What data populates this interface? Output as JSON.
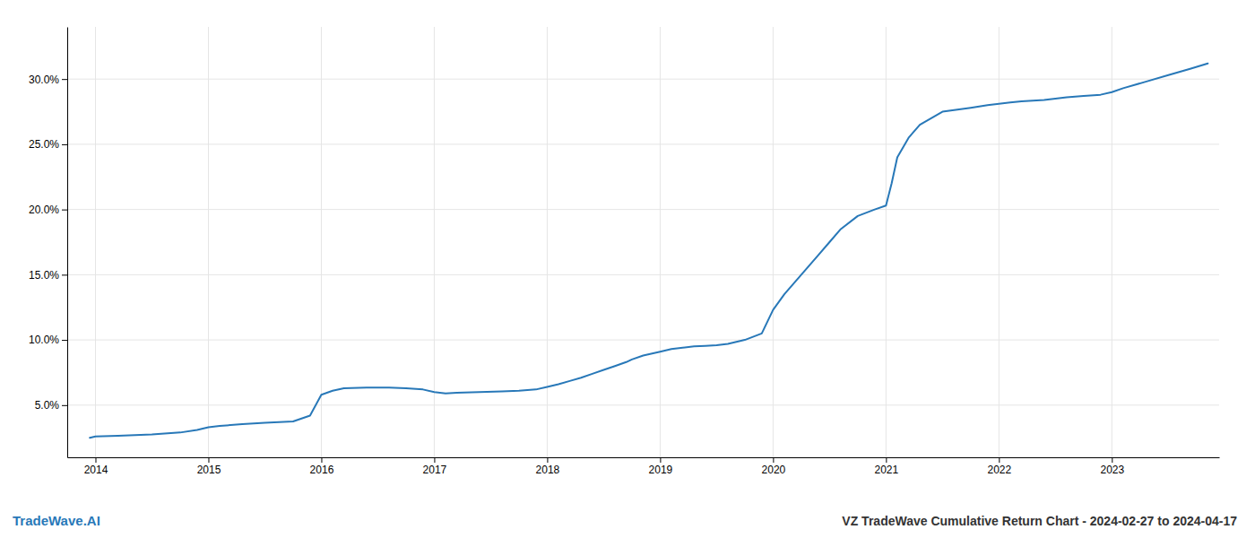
{
  "chart_data": {
    "type": "line",
    "title": "VZ TradeWave Cumulative Return Chart - 2024-02-27 to 2024-04-17",
    "annotations": [
      "TradeWave.AI"
    ],
    "color": "#2878b8",
    "grid": true,
    "x": [
      2013.95,
      2014.0,
      2014.2,
      2014.5,
      2014.75,
      2014.9,
      2015.0,
      2015.1,
      2015.3,
      2015.5,
      2015.75,
      2015.9,
      2016.0,
      2016.1,
      2016.2,
      2016.4,
      2016.6,
      2016.75,
      2016.9,
      2017.0,
      2017.1,
      2017.2,
      2017.4,
      2017.6,
      2017.75,
      2017.9,
      2018.0,
      2018.1,
      2018.2,
      2018.3,
      2018.4,
      2018.5,
      2018.6,
      2018.7,
      2018.75,
      2018.85,
      2019.0,
      2019.1,
      2019.2,
      2019.3,
      2019.4,
      2019.5,
      2019.6,
      2019.75,
      2019.9,
      2020.0,
      2020.1,
      2020.2,
      2020.3,
      2020.4,
      2020.5,
      2020.6,
      2020.75,
      2020.9,
      2021.0,
      2021.05,
      2021.1,
      2021.2,
      2021.3,
      2021.5,
      2021.75,
      2021.9,
      2022.0,
      2022.1,
      2022.2,
      2022.4,
      2022.6,
      2022.75,
      2022.9,
      2023.0,
      2023.1,
      2023.3,
      2023.5,
      2023.7,
      2023.85
    ],
    "values": [
      2.5,
      2.6,
      2.65,
      2.75,
      2.9,
      3.1,
      3.3,
      3.4,
      3.55,
      3.65,
      3.75,
      4.2,
      5.8,
      6.1,
      6.3,
      6.35,
      6.35,
      6.3,
      6.2,
      6.0,
      5.9,
      5.95,
      6.0,
      6.05,
      6.1,
      6.2,
      6.4,
      6.6,
      6.85,
      7.1,
      7.4,
      7.7,
      8.0,
      8.3,
      8.5,
      8.8,
      9.1,
      9.3,
      9.4,
      9.5,
      9.55,
      9.6,
      9.7,
      10.0,
      10.5,
      12.3,
      13.5,
      14.5,
      15.5,
      16.5,
      17.5,
      18.5,
      19.5,
      20.0,
      20.3,
      22.0,
      24.0,
      25.5,
      26.5,
      27.5,
      27.8,
      28.0,
      28.1,
      28.2,
      28.3,
      28.4,
      28.6,
      28.7,
      28.8,
      29.0,
      29.3,
      29.8,
      30.3,
      30.8,
      31.2
    ],
    "xlim": [
      2013.75,
      2023.95
    ],
    "ylim": [
      1.0,
      34.0
    ],
    "xticks": [
      2014,
      2015,
      2016,
      2017,
      2018,
      2019,
      2020,
      2021,
      2022,
      2023
    ],
    "yticks": [
      {
        "value": 5.0,
        "label": "5.0%"
      },
      {
        "value": 10.0,
        "label": "10.0%"
      },
      {
        "value": 15.0,
        "label": "15.0%"
      },
      {
        "value": 20.0,
        "label": "20.0%"
      },
      {
        "value": 25.0,
        "label": "25.0%"
      },
      {
        "value": 30.0,
        "label": "30.0%"
      }
    ]
  }
}
